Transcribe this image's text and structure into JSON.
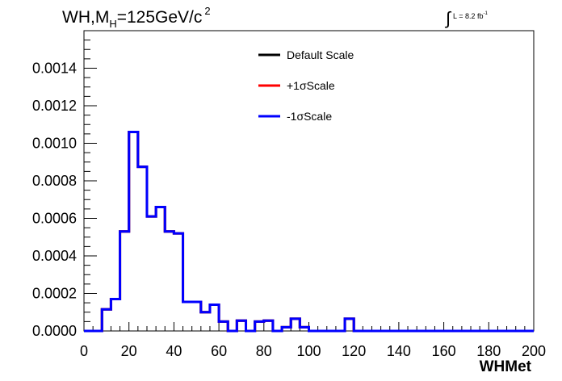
{
  "chart_data": {
    "type": "line",
    "title_main": "WH,M",
    "title_sub": "H",
    "title_rest": "=125GeV/c",
    "title_sup": "2",
    "lumi_symbol": "∫",
    "lumi_text": "L = 8.2 fb",
    "lumi_sup": "-1",
    "xlabel": "WHMet",
    "ylabel": "",
    "xlim": [
      0,
      200
    ],
    "ylim": [
      0,
      0.0016
    ],
    "x_ticks": [
      "0",
      "20",
      "40",
      "60",
      "80",
      "100",
      "120",
      "140",
      "160",
      "180",
      "200"
    ],
    "y_ticks": [
      "0.0000",
      "0.0002",
      "0.0004",
      "0.0006",
      "0.0008",
      "0.0010",
      "0.0012",
      "0.0014"
    ],
    "legend_position": "top-right",
    "legend": [
      {
        "name": "Default Scale",
        "color": "#000000"
      },
      {
        "name": "+1σScale",
        "color": "#ff0000"
      },
      {
        "name": "-1σScale",
        "color": "#0000ff"
      }
    ],
    "bin_edges": [
      0,
      4,
      8,
      12,
      16,
      20,
      24,
      28,
      32,
      36,
      40,
      44,
      48,
      52,
      56,
      60,
      64,
      68,
      72,
      76,
      80,
      84,
      88,
      92,
      96,
      100,
      104,
      108,
      112,
      116,
      120,
      124,
      128,
      132,
      136,
      140,
      144,
      148,
      152,
      156,
      160,
      164,
      168,
      172,
      176,
      180,
      184,
      188,
      192,
      196,
      200
    ],
    "series": [
      {
        "name": "Default Scale",
        "color": "#000000",
        "values": [
          0,
          0,
          0.000115,
          0.00017,
          0.00053,
          0.00106,
          0.000875,
          0.00061,
          0.00066,
          0.00053,
          0.00052,
          0.000155,
          0.000155,
          0.0001,
          0.00014,
          5e-05,
          0,
          5.5e-05,
          0,
          5e-05,
          5.5e-05,
          0,
          2e-05,
          6.5e-05,
          2e-05,
          0,
          0,
          0,
          0,
          6.5e-05,
          0,
          0,
          0,
          0,
          0,
          0,
          0,
          0,
          0,
          0,
          0,
          0,
          0,
          0,
          0,
          0,
          0,
          0,
          0,
          0
        ]
      },
      {
        "name": "+1σScale",
        "color": "#ff0000",
        "values": [
          0,
          0,
          0.000115,
          0.00017,
          0.00053,
          0.00106,
          0.000875,
          0.00061,
          0.00066,
          0.00053,
          0.00052,
          0.000155,
          0.000155,
          0.0001,
          0.00014,
          5e-05,
          0,
          5.5e-05,
          0,
          5e-05,
          5.5e-05,
          0,
          2e-05,
          6.5e-05,
          2e-05,
          0,
          0,
          0,
          0,
          6.5e-05,
          0,
          0,
          0,
          0,
          0,
          0,
          0,
          0,
          0,
          0,
          0,
          0,
          0,
          0,
          0,
          0,
          0,
          0,
          0,
          0
        ]
      },
      {
        "name": "-1σScale",
        "color": "#0000ff",
        "values": [
          0,
          0,
          0.000115,
          0.00017,
          0.00053,
          0.00106,
          0.000875,
          0.00061,
          0.00066,
          0.00053,
          0.00052,
          0.000155,
          0.000155,
          0.0001,
          0.00014,
          5e-05,
          0,
          5.5e-05,
          0,
          5e-05,
          5.5e-05,
          0,
          2e-05,
          6.5e-05,
          2e-05,
          0,
          0,
          0,
          0,
          6.5e-05,
          0,
          0,
          0,
          0,
          0,
          0,
          0,
          0,
          0,
          0,
          0,
          0,
          0,
          0,
          0,
          0,
          0,
          0,
          0,
          0
        ]
      }
    ]
  }
}
